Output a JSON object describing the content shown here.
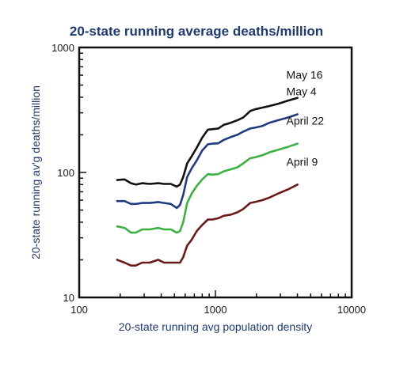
{
  "chart_data": {
    "type": "line",
    "title": "20-state running average deaths/million",
    "xlabel": "20-state running avg population density",
    "ylabel": "20-state running av'g deaths/million",
    "xscale": "log",
    "yscale": "log",
    "xlim": [
      100,
      10000
    ],
    "ylim": [
      10,
      1000
    ],
    "xticks": [
      {
        "value": 100,
        "label": "100"
      },
      {
        "value": 1000,
        "label": "1000"
      },
      {
        "value": 10000,
        "label": "10000"
      }
    ],
    "yticks": [
      {
        "value": 10,
        "label": "10"
      },
      {
        "value": 100,
        "label": "100"
      },
      {
        "value": 1000,
        "label": "1000"
      }
    ],
    "grid": false,
    "series": [
      {
        "name": "May 16",
        "color": "#111111",
        "x": [
          190,
          215,
          240,
          260,
          290,
          330,
          380,
          420,
          470,
          520,
          550,
          580,
          620,
          670,
          730,
          800,
          880,
          950,
          1050,
          1150,
          1300,
          1450,
          1600,
          1800,
          1950,
          2200,
          2500,
          2900,
          3400,
          4000
        ],
        "y": [
          87,
          88,
          82,
          80,
          82,
          81,
          82,
          81,
          81,
          77,
          80,
          92,
          118,
          135,
          158,
          190,
          220,
          222,
          225,
          240,
          250,
          262,
          275,
          310,
          320,
          330,
          340,
          355,
          375,
          395
        ]
      },
      {
        "name": "May 4",
        "color": "#1f3b80",
        "x": [
          190,
          215,
          240,
          260,
          290,
          330,
          380,
          420,
          470,
          520,
          550,
          580,
          620,
          670,
          730,
          800,
          880,
          950,
          1050,
          1150,
          1300,
          1450,
          1600,
          1800,
          1950,
          2200,
          2500,
          2900,
          3400,
          4000
        ],
        "y": [
          59,
          59,
          56,
          56,
          57,
          57,
          58,
          57,
          56,
          52,
          55,
          66,
          92,
          108,
          125,
          150,
          168,
          170,
          171,
          182,
          192,
          200,
          212,
          225,
          228,
          235,
          250,
          262,
          275,
          292
        ]
      },
      {
        "name": "April 22",
        "color": "#3cb043",
        "x": [
          190,
          215,
          240,
          260,
          290,
          330,
          380,
          420,
          470,
          520,
          550,
          580,
          620,
          670,
          730,
          800,
          880,
          950,
          1050,
          1150,
          1300,
          1450,
          1600,
          1800,
          1950,
          2200,
          2500,
          2900,
          3400,
          4000
        ],
        "y": [
          37,
          36,
          33,
          33,
          35,
          35,
          36,
          35,
          35,
          33,
          34,
          40,
          57,
          68,
          78,
          88,
          97,
          96,
          97,
          102,
          106,
          110,
          118,
          130,
          132,
          137,
          145,
          152,
          160,
          170
        ]
      },
      {
        "name": "April 9",
        "color": "#6b1a1a",
        "x": [
          190,
          215,
          240,
          260,
          290,
          330,
          380,
          420,
          470,
          520,
          550,
          580,
          620,
          670,
          730,
          800,
          880,
          950,
          1050,
          1150,
          1300,
          1450,
          1600,
          1800,
          1950,
          2200,
          2500,
          2900,
          3400,
          4000
        ],
        "y": [
          20,
          19,
          18,
          18,
          19,
          19,
          20,
          19,
          19,
          19,
          19,
          21,
          26,
          29,
          34,
          38,
          42,
          42,
          43,
          45,
          46,
          48,
          51,
          57,
          58,
          60,
          63,
          68,
          73,
          80
        ]
      }
    ]
  }
}
